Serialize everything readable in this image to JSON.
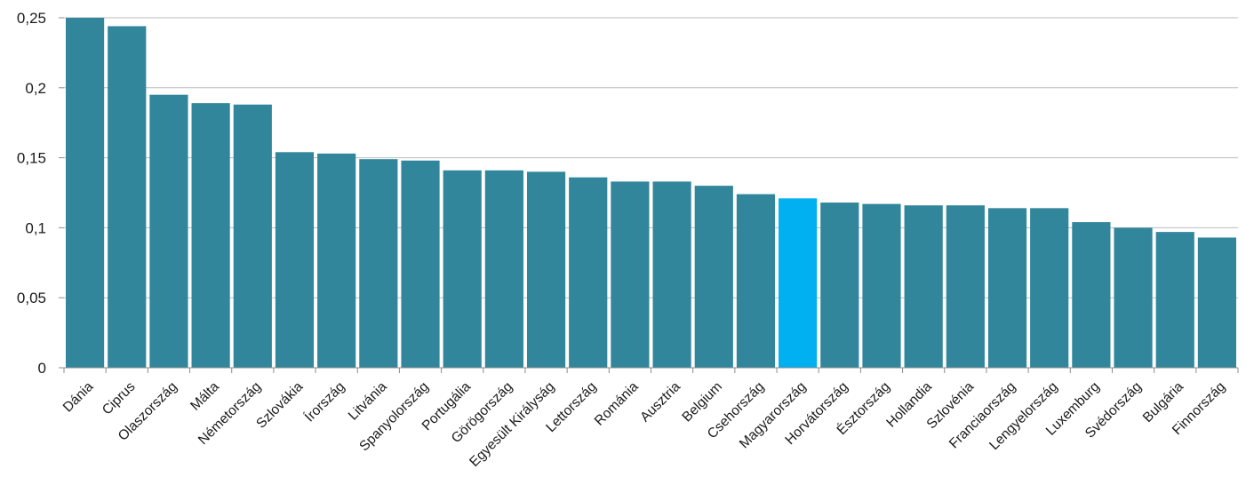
{
  "chart_data": {
    "type": "bar",
    "title": "",
    "xlabel": "",
    "ylabel": "",
    "ylim": [
      0,
      0.25
    ],
    "yticks": [
      0,
      0.05,
      0.1,
      0.15,
      0.2,
      0.25
    ],
    "ytick_labels": [
      "0",
      "0,05",
      "0,1",
      "0,15",
      "0,2",
      "0,25"
    ],
    "grid": true,
    "legend": "none",
    "categories": [
      "Dánia",
      "Ciprus",
      "Olaszország",
      "Málta",
      "Németország",
      "Szlovákia",
      "Írország",
      "Litvánia",
      "Spanyolország",
      "Portugália",
      "Görögország",
      "Egyesült Királyság",
      "Lettország",
      "Románia",
      "Ausztria",
      "Belgium",
      "Csehország",
      "Magyarország",
      "Horvátország",
      "Észtország",
      "Hollandia",
      "Szlovénia",
      "Franciaország",
      "Lengyelország",
      "Luxemburg",
      "Svédország",
      "Bulgária",
      "Finnország"
    ],
    "values": [
      0.25,
      0.244,
      0.195,
      0.189,
      0.188,
      0.154,
      0.153,
      0.149,
      0.148,
      0.141,
      0.141,
      0.14,
      0.136,
      0.133,
      0.133,
      0.13,
      0.124,
      0.121,
      0.118,
      0.117,
      0.116,
      0.116,
      0.114,
      0.114,
      0.104,
      0.1,
      0.097,
      0.093
    ],
    "colors": {
      "bar": "#31869b",
      "highlight": "#00b0f0",
      "grid": "#bdbdbd"
    },
    "highlight_category": "Magyarország"
  }
}
